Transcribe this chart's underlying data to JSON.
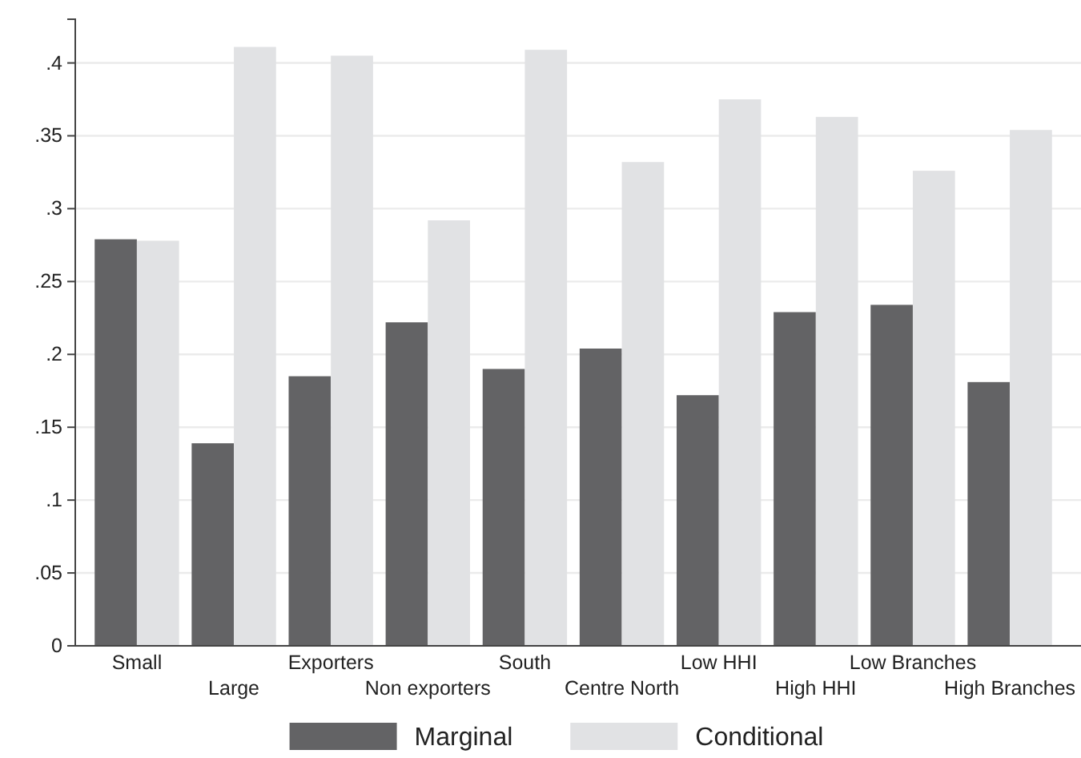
{
  "chart_data": {
    "type": "bar",
    "categories": [
      "Small",
      "Large",
      "Exporters",
      "Non exporters",
      "South",
      "Centre North",
      "Low HHI",
      "High HHI",
      "Low Branches",
      "High Branches"
    ],
    "series": [
      {
        "name": "Marginal",
        "color": "#636365",
        "values": [
          0.279,
          0.139,
          0.185,
          0.222,
          0.19,
          0.204,
          0.172,
          0.229,
          0.234,
          0.181
        ]
      },
      {
        "name": "Conditional",
        "color": "#e1e2e4",
        "values": [
          0.278,
          0.411,
          0.405,
          0.292,
          0.409,
          0.332,
          0.375,
          0.363,
          0.326,
          0.354
        ]
      }
    ],
    "ylim": [
      0,
      0.43
    ],
    "yticks": [
      {
        "value": 0,
        "label": "0"
      },
      {
        "value": 0.05,
        "label": ".05"
      },
      {
        "value": 0.1,
        "label": ".1"
      },
      {
        "value": 0.15,
        "label": ".15"
      },
      {
        "value": 0.2,
        "label": ".2"
      },
      {
        "value": 0.25,
        "label": ".25"
      },
      {
        "value": 0.3,
        "label": ".3"
      },
      {
        "value": 0.35,
        "label": ".35"
      },
      {
        "value": 0.4,
        "label": ".4"
      }
    ],
    "grid": "y",
    "legend": "bottom"
  }
}
